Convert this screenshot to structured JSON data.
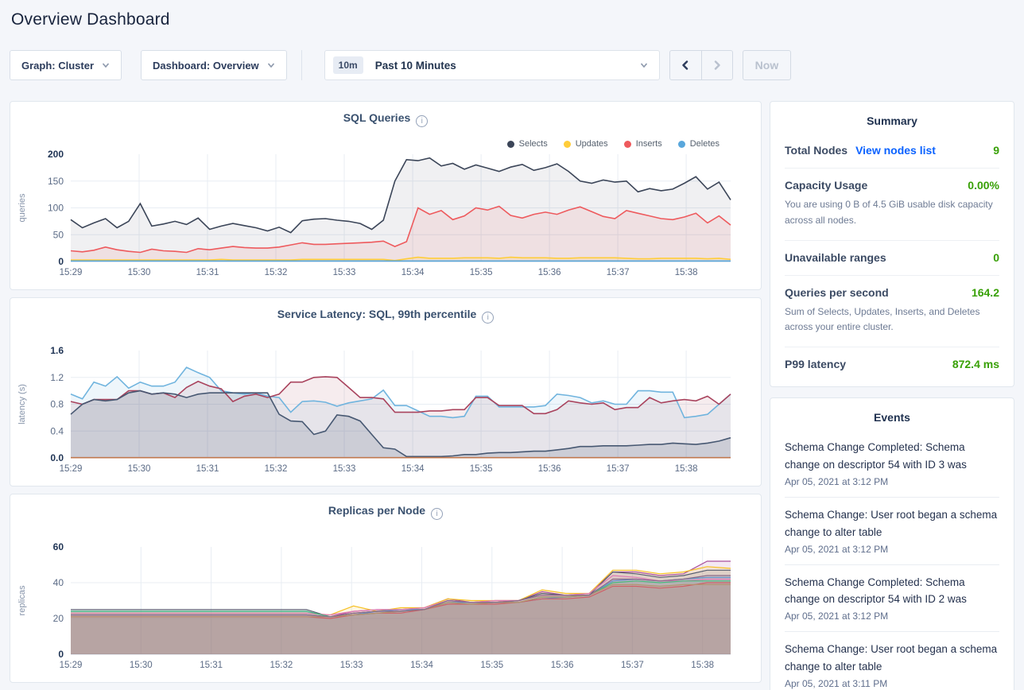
{
  "page": {
    "title": "Overview Dashboard"
  },
  "toolbar": {
    "graph_dropdown": "Graph: Cluster",
    "dashboard_dropdown": "Dashboard: Overview",
    "time_picker": {
      "badge": "10m",
      "label": "Past 10 Minutes"
    },
    "now_label": "Now"
  },
  "summary": {
    "title": "Summary",
    "rows": [
      {
        "label": "Total Nodes",
        "link": "View nodes list",
        "value": "9"
      },
      {
        "label": "Capacity Usage",
        "value": "0.00%",
        "desc": "You are using 0 B of 4.5 GiB usable disk capacity across all nodes."
      },
      {
        "label": "Unavailable ranges",
        "value": "0"
      },
      {
        "label": "Queries per second",
        "value": "164.2",
        "desc": "Sum of Selects, Updates, Inserts, and Deletes across your entire cluster."
      },
      {
        "label": "P99 latency",
        "value": "872.4 ms"
      }
    ]
  },
  "events": {
    "title": "Events",
    "items": [
      {
        "text": "Schema Change Completed: Schema change on descriptor 54 with ID 3 was",
        "time": "Apr 05, 2021 at 3:12 PM"
      },
      {
        "text": "Schema Change: User root began a schema change to alter table",
        "time": "Apr 05, 2021 at 3:12 PM"
      },
      {
        "text": "Schema Change Completed: Schema change on descriptor 54 with ID 2 was",
        "time": "Apr 05, 2021 at 3:12 PM"
      },
      {
        "text": "Schema Change: User root began a schema change to alter table",
        "time": "Apr 05, 2021 at 3:11 PM"
      }
    ]
  },
  "charts": [
    {
      "id": "sql-queries",
      "type": "area",
      "title": "SQL Queries",
      "yaxis_label": "queries",
      "ylim": [
        0,
        200
      ],
      "yticks": [
        "0",
        "50",
        "100",
        "150",
        "200"
      ],
      "xticks": [
        "15:29",
        "15:30",
        "15:31",
        "15:32",
        "15:33",
        "15:34",
        "15:35",
        "15:36",
        "15:37",
        "15:38"
      ],
      "x_span": 9.65,
      "line_width": 1.6,
      "series": [
        {
          "label": "Selects",
          "color": "#3b4558",
          "fill_opacity": 0.08,
          "values": [
            78,
            63,
            72,
            80,
            63,
            75,
            108,
            66,
            70,
            75,
            69,
            81,
            60,
            66,
            71,
            67,
            63,
            57,
            64,
            54,
            76,
            79,
            80,
            77,
            75,
            71,
            60,
            77,
            150,
            190,
            188,
            193,
            178,
            183,
            172,
            180,
            174,
            168,
            176,
            181,
            170,
            175,
            182,
            168,
            150,
            146,
            152,
            148,
            150,
            130,
            136,
            132,
            135,
            146,
            158,
            135,
            148,
            115
          ]
        },
        {
          "label": "Updates",
          "color": "#ffcd3a",
          "fill_opacity": 0.15,
          "values": [
            3,
            3,
            3,
            3,
            3,
            3,
            3,
            3,
            3,
            3,
            3,
            3,
            3,
            4,
            3,
            3,
            3,
            3,
            3,
            3,
            4,
            4,
            4,
            4,
            4,
            4,
            4,
            4,
            2,
            5,
            8,
            6,
            6,
            6,
            7,
            7,
            7,
            6,
            8,
            7,
            7,
            7,
            6,
            6,
            7,
            7,
            7,
            7,
            6,
            5,
            5,
            6,
            6,
            6,
            6,
            5,
            6,
            4
          ]
        },
        {
          "label": "Inserts",
          "color": "#ee5a5d",
          "fill_opacity": 0.1,
          "values": [
            20,
            18,
            21,
            27,
            22,
            19,
            17,
            23,
            20,
            19,
            17,
            24,
            22,
            25,
            28,
            26,
            25,
            25,
            27,
            31,
            35,
            32,
            32,
            33,
            34,
            35,
            36,
            38,
            28,
            37,
            100,
            88,
            95,
            78,
            85,
            100,
            96,
            103,
            86,
            81,
            88,
            92,
            88,
            96,
            102,
            93,
            84,
            80,
            95,
            90,
            85,
            80,
            78,
            83,
            90,
            72,
            85,
            68
          ]
        },
        {
          "label": "Deletes",
          "color": "#59a7dc",
          "fill_opacity": 0.15,
          "values": [
            1,
            1,
            1,
            1,
            1,
            1,
            1,
            1,
            1,
            1,
            1,
            1,
            1,
            1,
            1,
            1,
            1,
            1,
            1,
            1,
            1,
            1,
            1,
            1,
            1,
            1,
            1,
            1,
            1,
            1,
            1,
            1,
            1,
            1,
            1,
            1,
            1,
            1,
            1,
            1,
            1,
            1,
            1,
            1,
            1,
            1,
            1,
            1,
            1,
            1,
            1,
            1,
            1,
            1,
            1,
            1,
            1,
            1
          ]
        }
      ]
    },
    {
      "id": "sql-latency",
      "type": "area",
      "title": "Service Latency: SQL, 99th percentile",
      "yaxis_label": "latency (s)",
      "ylim": [
        0,
        1.6
      ],
      "yticks": [
        "0.0",
        "0.4",
        "0.8",
        "1.2",
        "1.6"
      ],
      "xticks": [
        "15:29",
        "15:30",
        "15:31",
        "15:32",
        "15:33",
        "15:34",
        "15:35",
        "15:36",
        "15:37",
        "15:38"
      ],
      "x_span": 9.65,
      "line_width": 1.6,
      "series": [
        {
          "color": "#70b4de",
          "fill_opacity": 0.12,
          "values": [
            0.95,
            0.88,
            1.13,
            1.07,
            1.21,
            1.04,
            1.13,
            1.07,
            1.07,
            1.13,
            1.35,
            1.27,
            1.2,
            1.0,
            0.97,
            0.95,
            0.97,
            0.92,
            0.9,
            0.68,
            0.84,
            0.85,
            0.83,
            0.77,
            0.82,
            0.85,
            0.88,
            1.01,
            0.78,
            0.78,
            0.7,
            0.62,
            0.62,
            0.6,
            0.62,
            0.92,
            0.92,
            0.76,
            0.76,
            0.76,
            0.76,
            0.78,
            0.95,
            0.93,
            0.9,
            0.82,
            0.85,
            0.8,
            0.8,
            1.0,
            1.0,
            0.98,
            0.98,
            0.6,
            0.62,
            0.65,
            0.8,
            0.95
          ]
        },
        {
          "color": "#a9435d",
          "fill_opacity": 0.1,
          "values": [
            0.84,
            0.8,
            0.87,
            0.87,
            0.87,
            1.0,
            1.0,
            0.95,
            0.97,
            0.9,
            1.05,
            1.14,
            1.07,
            1.03,
            0.84,
            0.92,
            0.95,
            0.9,
            0.95,
            1.13,
            1.13,
            1.2,
            1.21,
            1.2,
            1.05,
            0.9,
            0.9,
            0.88,
            0.68,
            0.68,
            0.68,
            0.7,
            0.7,
            0.72,
            0.72,
            0.9,
            0.9,
            0.78,
            0.78,
            0.78,
            0.66,
            0.66,
            0.72,
            0.85,
            0.82,
            0.8,
            0.82,
            0.72,
            0.75,
            0.75,
            0.9,
            0.82,
            0.85,
            0.87,
            0.85,
            0.92,
            0.8,
            0.95
          ]
        },
        {
          "color": "#475872",
          "fill_opacity": 0.16,
          "values": [
            0.65,
            0.8,
            0.87,
            0.85,
            0.87,
            0.97,
            1.0,
            0.95,
            0.97,
            0.95,
            0.9,
            0.95,
            0.97,
            0.97,
            0.97,
            0.97,
            0.97,
            0.97,
            0.65,
            0.55,
            0.54,
            0.35,
            0.4,
            0.64,
            0.62,
            0.55,
            0.35,
            0.15,
            0.13,
            0.02,
            0.02,
            0.02,
            0.02,
            0.03,
            0.05,
            0.05,
            0.07,
            0.08,
            0.08,
            0.09,
            0.1,
            0.1,
            0.12,
            0.14,
            0.17,
            0.17,
            0.18,
            0.18,
            0.18,
            0.19,
            0.2,
            0.2,
            0.22,
            0.21,
            0.2,
            0.22,
            0.25,
            0.3
          ]
        },
        {
          "color": "#c0784f",
          "fill_opacity": 0,
          "values": [
            0.004,
            0.004
          ]
        }
      ]
    },
    {
      "id": "replicas-per-node",
      "type": "area",
      "title": "Replicas per Node",
      "yaxis_label": "replicas",
      "ylim": [
        0,
        60
      ],
      "yticks": [
        "0",
        "20",
        "40",
        "60"
      ],
      "xticks": [
        "15:29",
        "15:30",
        "15:31",
        "15:32",
        "15:33",
        "15:34",
        "15:35",
        "15:36",
        "15:37",
        "15:38"
      ],
      "x_span": 9.4,
      "line_width": 1.2,
      "series": [
        {
          "color": "#a94f9b",
          "fill_opacity": 0.13,
          "values": [
            22,
            22,
            22,
            22,
            22,
            22,
            22,
            22,
            22,
            22,
            22,
            21,
            24,
            25,
            25,
            26,
            31,
            29,
            30,
            30,
            35,
            33,
            34,
            46,
            46,
            44,
            45,
            52,
            52
          ]
        },
        {
          "color": "#f6c022",
          "fill_opacity": 0.13,
          "values": [
            23,
            23,
            23,
            23,
            23,
            23,
            23,
            23,
            23,
            23,
            23,
            22,
            27,
            24,
            26,
            26,
            31,
            30,
            30,
            30,
            36,
            34,
            34,
            47,
            47,
            45,
            46,
            49,
            48
          ]
        },
        {
          "color": "#555c6e",
          "fill_opacity": 0.13,
          "values": [
            25,
            25,
            25,
            25,
            25,
            25,
            25,
            25,
            25,
            25,
            25,
            21,
            23,
            24,
            25,
            25,
            30,
            29,
            29,
            30,
            34,
            33,
            33,
            46,
            45,
            43,
            44,
            47,
            47
          ]
        },
        {
          "color": "#5c90cd",
          "fill_opacity": 0.13,
          "values": [
            24,
            24,
            24,
            24,
            24,
            24,
            24,
            24,
            24,
            24,
            24,
            21,
            22,
            24,
            25,
            25,
            29,
            29,
            29,
            29,
            31,
            32,
            33,
            41,
            42,
            41,
            42,
            43,
            43
          ]
        },
        {
          "color": "#de7bb4",
          "fill_opacity": 0.13,
          "values": [
            23,
            23,
            23,
            23,
            23,
            23,
            23,
            23,
            23,
            23,
            23,
            22,
            24,
            25,
            25,
            26,
            30,
            29,
            30,
            30,
            33,
            33,
            34,
            44,
            43,
            41,
            41,
            42,
            42
          ]
        },
        {
          "color": "#45ba7c",
          "fill_opacity": 0.13,
          "values": [
            24,
            24,
            24,
            24,
            24,
            24,
            24,
            24,
            24,
            24,
            24,
            21,
            22,
            23,
            24,
            25,
            29,
            28,
            29,
            29,
            32,
            32,
            33,
            40,
            41,
            40,
            41,
            41,
            41
          ]
        },
        {
          "color": "#cf5f66",
          "fill_opacity": 0.13,
          "values": [
            21,
            21,
            21,
            21,
            21,
            21,
            21,
            21,
            21,
            21,
            21,
            20,
            22,
            23,
            23,
            25,
            28,
            28,
            28,
            29,
            31,
            31,
            32,
            38,
            38,
            37,
            38,
            40,
            40
          ]
        },
        {
          "color": "#b3926d",
          "fill_opacity": 0.13,
          "values": [
            21,
            21,
            21,
            21,
            21,
            21,
            21,
            21,
            21,
            21,
            21,
            21,
            22,
            23,
            24,
            25,
            29,
            28,
            29,
            29,
            32,
            32,
            33,
            39,
            39,
            38,
            39,
            39,
            39
          ]
        },
        {
          "color": "#8a6a88",
          "fill_opacity": 0.13,
          "values": [
            22,
            22,
            22,
            22,
            22,
            22,
            22,
            22,
            22,
            22,
            22,
            21,
            23,
            24,
            24,
            25,
            30,
            29,
            29,
            30,
            33,
            33,
            33,
            42,
            42,
            41,
            42,
            44,
            44
          ]
        }
      ]
    }
  ]
}
